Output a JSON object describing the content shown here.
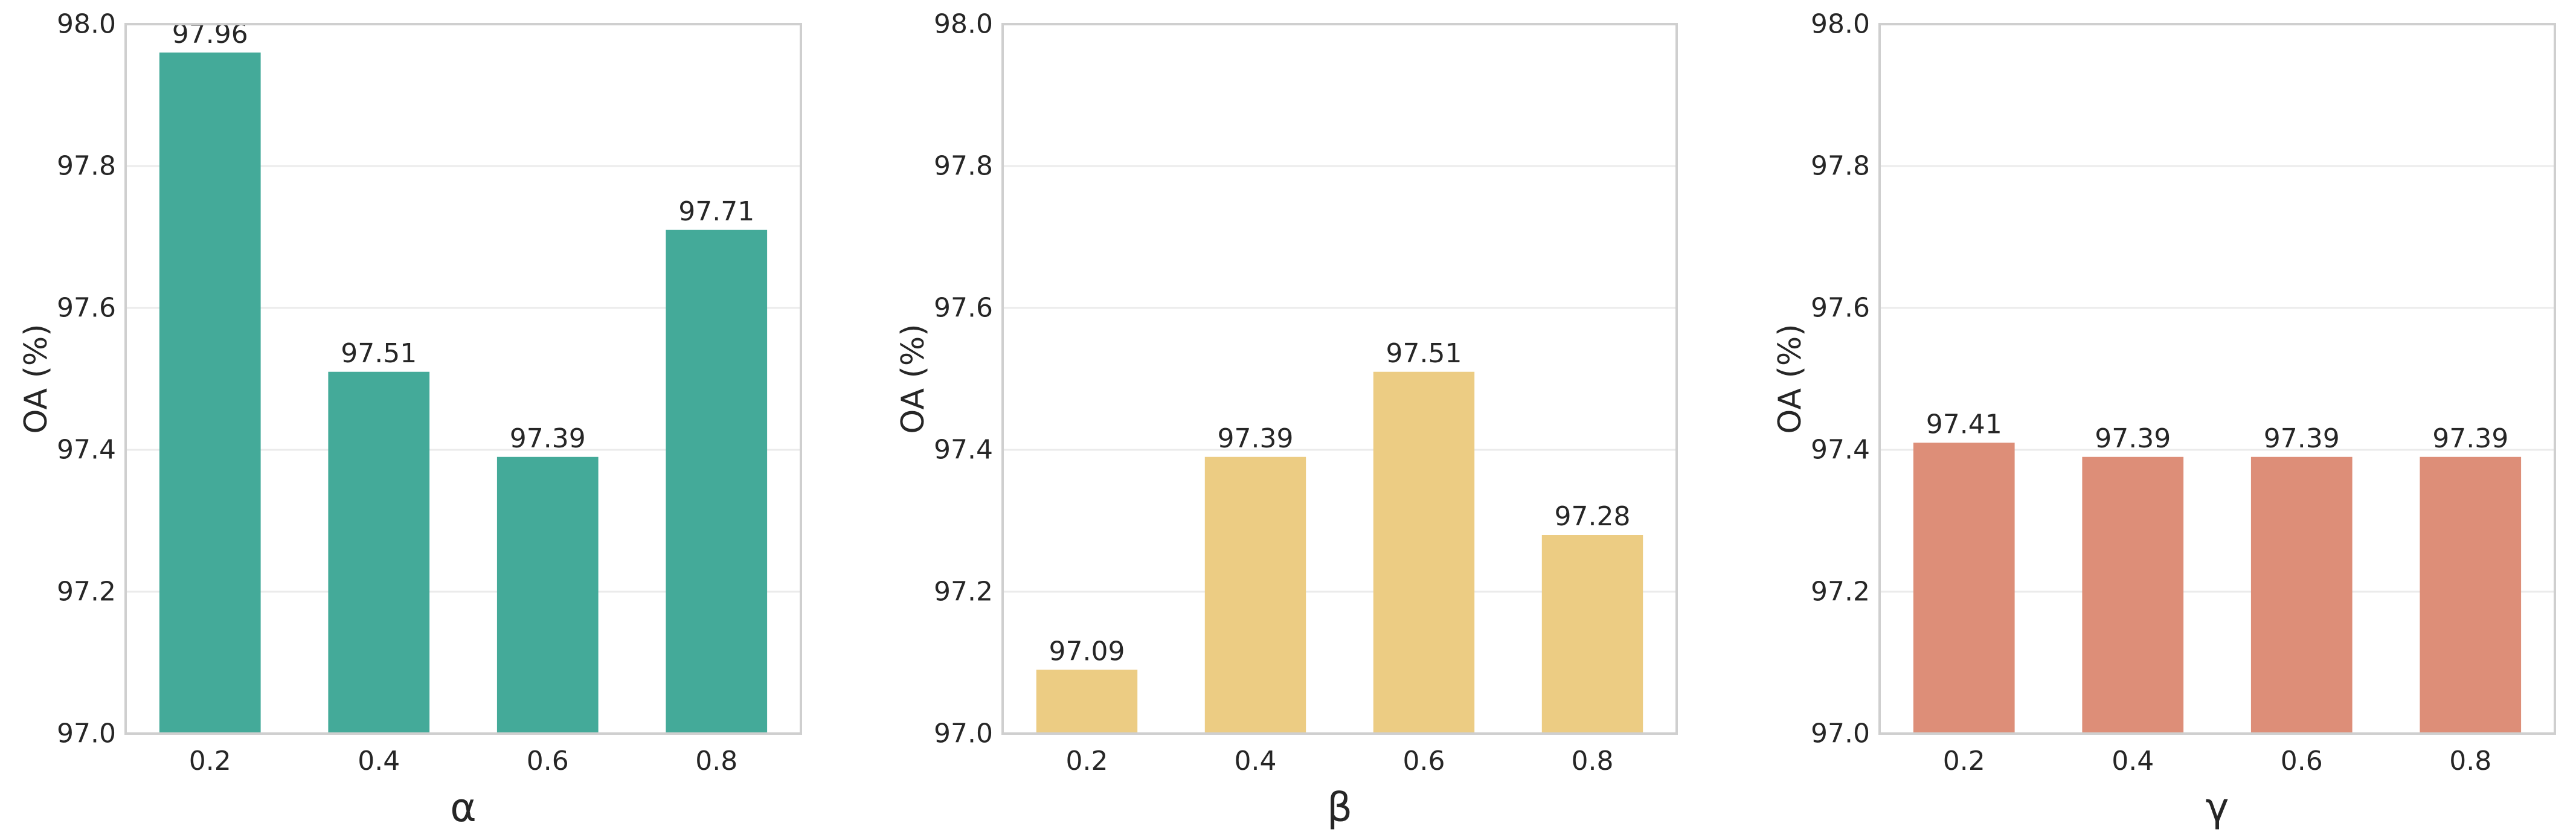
{
  "chart_data": [
    {
      "type": "bar",
      "categories": [
        "0.2",
        "0.4",
        "0.6",
        "0.8"
      ],
      "values": [
        97.96,
        97.51,
        97.39,
        97.71
      ],
      "value_labels": [
        "97.96",
        "97.51",
        "97.39",
        "97.71"
      ],
      "xlabel": "α",
      "ylabel": "OA (%)",
      "ylim": [
        97.0,
        98.0
      ],
      "yticks": [
        "97.0",
        "97.2",
        "97.4",
        "97.6",
        "97.8",
        "98.0"
      ],
      "grid": "horizontal",
      "color": "#44aa99"
    },
    {
      "type": "bar",
      "categories": [
        "0.2",
        "0.4",
        "0.6",
        "0.8"
      ],
      "values": [
        97.09,
        97.39,
        97.51,
        97.28
      ],
      "value_labels": [
        "97.09",
        "97.39",
        "97.51",
        "97.28"
      ],
      "xlabel": "β",
      "ylabel": "OA (%)",
      "ylim": [
        97.0,
        98.0
      ],
      "yticks": [
        "97.0",
        "97.2",
        "97.4",
        "97.6",
        "97.8",
        "98.0"
      ],
      "grid": "horizontal",
      "color": "#eccc83"
    },
    {
      "type": "bar",
      "categories": [
        "0.2",
        "0.4",
        "0.6",
        "0.8"
      ],
      "values": [
        97.41,
        97.39,
        97.39,
        97.39
      ],
      "value_labels": [
        "97.41",
        "97.39",
        "97.39",
        "97.39"
      ],
      "xlabel": "γ",
      "ylabel": "OA (%)",
      "ylim": [
        97.0,
        98.0
      ],
      "yticks": [
        "97.0",
        "97.2",
        "97.4",
        "97.6",
        "97.8",
        "98.0"
      ],
      "grid": "horizontal",
      "color": "#dd8e78"
    }
  ]
}
